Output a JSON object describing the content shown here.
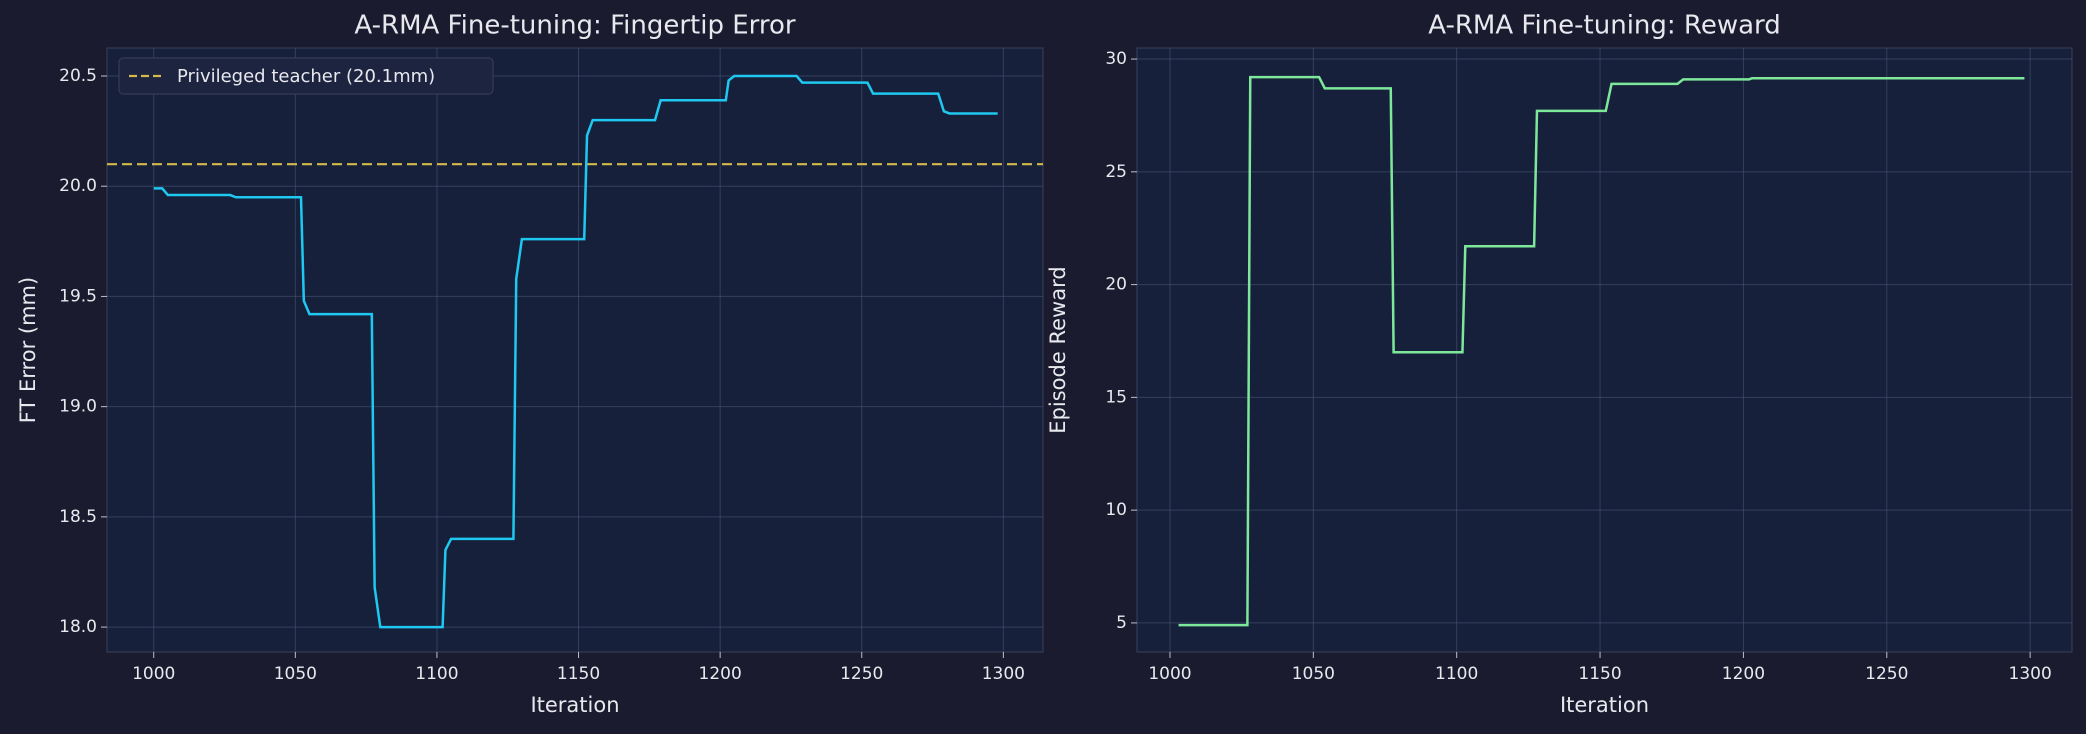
{
  "chart_data": [
    {
      "type": "line",
      "title": "A-RMA Fine-tuning: Fingertip Error",
      "xlabel": "Iteration",
      "ylabel": "FT Error (mm)",
      "x": [
        1000,
        1003,
        1005,
        1027,
        1029,
        1052,
        1053,
        1055,
        1077,
        1078,
        1080,
        1102,
        1103,
        1105,
        1127,
        1128,
        1130,
        1152,
        1153,
        1155,
        1177,
        1179,
        1202,
        1203,
        1205,
        1227,
        1229,
        1252,
        1254,
        1277,
        1279,
        1281,
        1298
      ],
      "series": [
        {
          "color": "#1ec8f0",
          "values": [
            19.99,
            19.99,
            19.96,
            19.96,
            19.95,
            19.95,
            19.48,
            19.42,
            19.42,
            18.18,
            18.0,
            18.0,
            18.35,
            18.4,
            18.4,
            19.58,
            19.76,
            19.76,
            20.23,
            20.3,
            20.3,
            20.39,
            20.39,
            20.48,
            20.5,
            20.5,
            20.47,
            20.47,
            20.42,
            20.42,
            20.34,
            20.33,
            20.33
          ]
        }
      ],
      "hline": {
        "value": 20.1,
        "label": "Privileged teacher (20.1mm)",
        "color": "#d4b94a"
      },
      "xlim": [
        983.5,
        1314
      ],
      "ylim": [
        17.887,
        20.627
      ],
      "xticks": [
        1000,
        1050,
        1100,
        1150,
        1200,
        1250,
        1300
      ],
      "yticks": [
        {
          "value": 18,
          "label": "18.0"
        },
        18.5,
        {
          "value": 19,
          "label": "19.0"
        },
        19.5,
        {
          "value": 20,
          "label": "20.0"
        },
        20.5
      ],
      "grid": true,
      "legend": "upper left"
    },
    {
      "type": "line",
      "title": "A-RMA Fine-tuning: Reward",
      "xlabel": "Iteration",
      "ylabel": "Episode Reward",
      "x": [
        1003,
        1027,
        1028,
        1052,
        1054,
        1077,
        1078,
        1102,
        1103,
        1127,
        1128,
        1152,
        1154,
        1177,
        1179,
        1202,
        1203,
        1298
      ],
      "series": [
        {
          "color": "#7ee89a",
          "values": [
            4.9,
            4.9,
            29.2,
            29.2,
            28.7,
            28.7,
            17.0,
            17.0,
            21.7,
            21.7,
            27.7,
            27.7,
            28.9,
            28.9,
            29.1,
            29.1,
            29.15,
            29.15
          ]
        }
      ],
      "xlim": [
        988.5,
        1314.6
      ],
      "ylim": [
        3.71,
        30.49
      ],
      "xticks": [
        1000,
        1050,
        1100,
        1150,
        1200,
        1250,
        1300
      ],
      "yticks": [
        5,
        10,
        15,
        20,
        25,
        30
      ],
      "grid": true
    }
  ]
}
